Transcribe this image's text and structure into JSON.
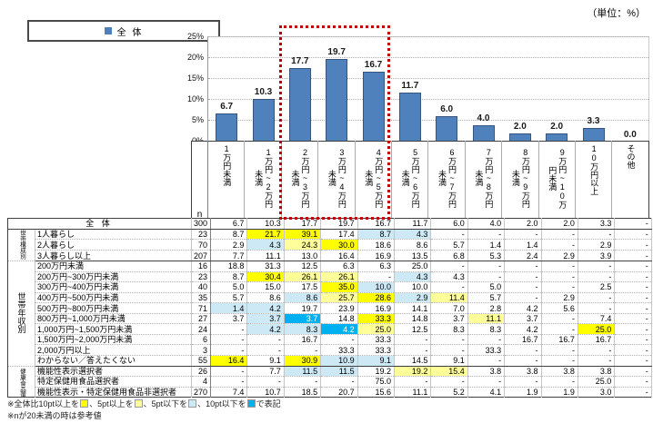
{
  "unit_label": "（単位：%）",
  "legend": {
    "label": "全 体",
    "color": "#4f81bd"
  },
  "chart_data": {
    "type": "bar",
    "title": "",
    "categories": [
      "1万円未満",
      "1万円~2万円未満",
      "2万円~3万円未満",
      "3万円~4万円未満",
      "4万円~5万円未満",
      "5万円~6万円未満",
      "6万円~7万円未満",
      "7万円~8万円未満",
      "8万円~9万円未満",
      "9万円~10万円未満",
      "10万円以上",
      "その他"
    ],
    "values": [
      6.7,
      10.3,
      17.7,
      19.7,
      16.7,
      11.7,
      6.0,
      4.0,
      2.0,
      2.0,
      3.3,
      0.0
    ],
    "labels": [
      "6.7",
      "10.3",
      "17.7",
      "19.7",
      "16.7",
      "11.7",
      "6.0",
      "4.0",
      "2.0",
      "2.0",
      "3.3",
      "0.0"
    ],
    "series_name": "全体",
    "yticks": [
      "0%",
      "5%",
      "10%",
      "15%",
      "20%",
      "25%"
    ],
    "ylim": [
      0,
      25
    ],
    "grid": true,
    "legend_position": "top-left",
    "bar_color": "#4f81bd",
    "bar_border_color": "#36547e",
    "highlighted_categories": [
      "2万円~3万円未満",
      "3万円~4万円未満",
      "4万円~5万円未満"
    ],
    "highlight_box_color": "#c00000"
  },
  "table": {
    "n_header": "n",
    "groups": [
      {
        "label": "",
        "span": 1,
        "cls": ""
      },
      {
        "label": "世帯構成別",
        "span": 3,
        "cls": "g-sm1"
      },
      {
        "label": "世帯年収別",
        "span": 10,
        "cls": ""
      },
      {
        "label": "健康食品選択者別",
        "span": 3,
        "cls": "g-sm3"
      }
    ],
    "rows": [
      {
        "label": "全 体",
        "full": true,
        "n": "300",
        "cells": [
          "6.7",
          "10.3",
          "17.7",
          "19.7",
          "16.7",
          "11.7",
          "6.0",
          "4.0",
          "2.0",
          "2.0",
          "3.3",
          "-"
        ],
        "marks": [
          "",
          "",
          "",
          "",
          "",
          "",
          "",
          "",
          "",
          "",
          "",
          ""
        ]
      },
      {
        "label": "1人暮らし",
        "n": "23",
        "cells": [
          "8.7",
          "21.7",
          "39.1",
          "17.4",
          "8.7",
          "4.3",
          "-",
          "-",
          "-",
          "-",
          "-",
          "-"
        ],
        "marks": [
          "",
          "y",
          "y",
          "",
          "lb",
          "lb",
          "",
          "",
          "",
          "",
          "",
          ""
        ]
      },
      {
        "label": "2人暮らし",
        "n": "70",
        "cells": [
          "2.9",
          "4.3",
          "24.3",
          "30.0",
          "18.6",
          "8.6",
          "5.7",
          "1.4",
          "1.4",
          "-",
          "2.9",
          "-"
        ],
        "marks": [
          "",
          "lb",
          "ly",
          "y",
          "",
          "",
          "",
          "",
          "",
          "",
          "",
          ""
        ]
      },
      {
        "label": "3人暮らし以上",
        "n": "207",
        "cells": [
          "7.7",
          "11.1",
          "13.0",
          "16.4",
          "16.9",
          "13.5",
          "6.8",
          "5.3",
          "2.4",
          "2.9",
          "3.9",
          "-"
        ],
        "marks": [
          "",
          "",
          "",
          "",
          "",
          "",
          "",
          "",
          "",
          "",
          "",
          ""
        ]
      },
      {
        "label": "200万円未満",
        "n": "16",
        "cells": [
          "18.8",
          "31.3",
          "12.5",
          "6.3",
          "6.3",
          "25.0",
          "-",
          "-",
          "-",
          "-",
          "-",
          "-"
        ],
        "marks": [
          "",
          "",
          "",
          "",
          "",
          "",
          "",
          "",
          "",
          "",
          "",
          ""
        ]
      },
      {
        "label": "200万円~300万円未満",
        "n": "23",
        "cells": [
          "8.7",
          "30.4",
          "26.1",
          "26.1",
          "-",
          "4.3",
          "4.3",
          "-",
          "-",
          "-",
          "-",
          "-"
        ],
        "marks": [
          "",
          "y",
          "ly",
          "ly",
          "",
          "lb",
          "",
          "",
          "",
          "",
          "",
          ""
        ]
      },
      {
        "label": "300万円~400万円未満",
        "n": "40",
        "cells": [
          "5.0",
          "15.0",
          "17.5",
          "35.0",
          "10.0",
          "10.0",
          "-",
          "5.0",
          "-",
          "-",
          "2.5",
          "-"
        ],
        "marks": [
          "",
          "",
          "",
          "y",
          "lb",
          "",
          "",
          "",
          "",
          "",
          "",
          ""
        ]
      },
      {
        "label": "400万円~500万円未満",
        "n": "35",
        "cells": [
          "5.7",
          "8.6",
          "8.6",
          "25.7",
          "28.6",
          "2.9",
          "11.4",
          "5.7",
          "-",
          "2.9",
          "-",
          "-"
        ],
        "marks": [
          "",
          "",
          "lb",
          "ly",
          "y",
          "lb",
          "ly",
          "",
          "",
          "",
          "",
          ""
        ]
      },
      {
        "label": "500万円~800万円未満",
        "n": "71",
        "cells": [
          "1.4",
          "4.2",
          "19.7",
          "23.9",
          "16.9",
          "14.1",
          "7.0",
          "2.8",
          "4.2",
          "5.6",
          "-",
          "-"
        ],
        "marks": [
          "lb",
          "lb",
          "",
          "",
          "",
          "",
          "",
          "",
          "",
          "",
          "",
          ""
        ]
      },
      {
        "label": "800万円~1,000万円未満",
        "n": "27",
        "cells": [
          "3.7",
          "3.7",
          "3.7",
          "14.8",
          "33.3",
          "14.8",
          "3.7",
          "11.1",
          "3.7",
          "-",
          "7.4",
          "-"
        ],
        "marks": [
          "",
          "lb",
          "db",
          "",
          "y",
          "",
          "",
          "ly",
          "",
          "",
          "",
          ""
        ]
      },
      {
        "label": "1,000万円~1,500万円未満",
        "n": "24",
        "cells": [
          "-",
          "4.2",
          "8.3",
          "4.2",
          "25.0",
          "12.5",
          "8.3",
          "8.3",
          "4.2",
          "-",
          "25.0",
          "-"
        ],
        "marks": [
          "",
          "lb",
          "lb",
          "db",
          "ly",
          "",
          "",
          "",
          "",
          "",
          "y",
          ""
        ]
      },
      {
        "label": "1,500万円~2,000万円未満",
        "n": "6",
        "cells": [
          "-",
          "-",
          "16.7",
          "-",
          "33.3",
          "-",
          "-",
          "-",
          "16.7",
          "16.7",
          "16.7",
          "-"
        ],
        "marks": [
          "",
          "",
          "",
          "",
          "",
          "",
          "",
          "",
          "",
          "",
          "",
          ""
        ]
      },
      {
        "label": "2,000万円以上",
        "n": "3",
        "cells": [
          "-",
          "-",
          "-",
          "33.3",
          "33.3",
          "-",
          "-",
          "33.3",
          "-",
          "-",
          "-",
          "-"
        ],
        "marks": [
          "",
          "",
          "",
          "",
          "",
          "",
          "",
          "",
          "",
          "",
          "",
          ""
        ]
      },
      {
        "label": "わからない／答えたくない",
        "n": "55",
        "cells": [
          "16.4",
          "9.1",
          "30.9",
          "10.9",
          "9.1",
          "14.5",
          "9.1",
          "-",
          "-",
          "-",
          "-",
          "-"
        ],
        "marks": [
          "y",
          "",
          "y",
          "lb",
          "lb",
          "",
          "",
          "",
          "",
          "",
          "",
          ""
        ]
      },
      {
        "label": "機能性表示選択者",
        "n": "26",
        "cells": [
          "-",
          "7.7",
          "11.5",
          "11.5",
          "19.2",
          "19.2",
          "15.4",
          "3.8",
          "3.8",
          "3.8",
          "3.8",
          "-"
        ],
        "marks": [
          "",
          "",
          "lb",
          "lb",
          "",
          "ly",
          "ly",
          "",
          "",
          "",
          "",
          ""
        ]
      },
      {
        "label": "特定保健用食品選択者",
        "n": "4",
        "cells": [
          "-",
          "-",
          "-",
          "-",
          "75.0",
          "-",
          "-",
          "-",
          "-",
          "-",
          "25.0",
          "-"
        ],
        "marks": [
          "",
          "",
          "",
          "",
          "",
          "",
          "",
          "",
          "",
          "",
          "",
          ""
        ]
      },
      {
        "label": "機能性表示・特定保健用食品非選択者",
        "n": "270",
        "cells": [
          "7.4",
          "10.7",
          "18.5",
          "20.7",
          "15.6",
          "11.1",
          "5.2",
          "4.1",
          "1.9",
          "1.9",
          "3.0",
          "-"
        ],
        "marks": [
          "",
          "",
          "",
          "",
          "",
          "",
          "",
          "",
          "",
          "",
          "",
          ""
        ]
      }
    ]
  },
  "mark_colors": {
    "y": "#ffff00",
    "ly": "#ffff99",
    "lb": "#cde9f6",
    "db": "#00b0f0"
  },
  "footnotes": {
    "line1_parts": [
      {
        "t": "※全体比10pt以上を"
      },
      {
        "sq": "y"
      },
      {
        "t": "、5pt以上を"
      },
      {
        "sq": "ly"
      },
      {
        "t": "、5pt以下を"
      },
      {
        "sq": "lb"
      },
      {
        "t": "、10pt以下を"
      },
      {
        "sq": "db"
      },
      {
        "t": "で表記"
      }
    ],
    "line2": "※nが20未満の時は参考値"
  }
}
